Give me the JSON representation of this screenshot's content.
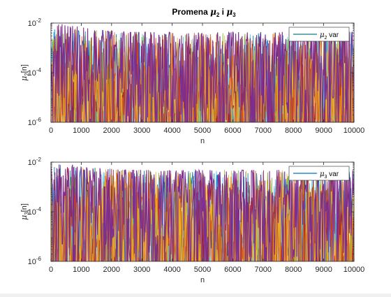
{
  "figure": {
    "title_main": "Promena ",
    "title_mu": "μ",
    "title_sub1": "2",
    "title_and": " i ",
    "title_mu2": "μ",
    "title_sub2": "3"
  },
  "colors": [
    "#0072BD",
    "#D95319",
    "#EDB120",
    "#7E2F8E",
    "#77AC30",
    "#4DBEEE",
    "#A2142F"
  ],
  "chart_data": [
    {
      "type": "line",
      "subplot": "top",
      "ylabel_main": "μ",
      "ylabel_sub": "2",
      "ylabel_suffix": "[n]",
      "xlabel": "n",
      "xlim": [
        0,
        10000
      ],
      "ylim": [
        1e-06,
        0.01
      ],
      "yscale": "log",
      "xticks": [
        0,
        1000,
        2000,
        3000,
        4000,
        5000,
        6000,
        7000,
        8000,
        9000,
        10000
      ],
      "ytick_labels": [
        {
          "base": "10",
          "exp": "-2"
        },
        {
          "base": "10",
          "exp": "-4"
        },
        {
          "base": "10",
          "exp": "-6"
        }
      ],
      "ytick_values": [
        0.01,
        0.0001,
        1e-06
      ],
      "envelope": {
        "start": 0.009,
        "mid": 0.004,
        "end": 0.0045
      },
      "legend": {
        "label_main": "μ",
        "label_sub": "2",
        "label_suffix": " var",
        "placement": "top-right"
      }
    },
    {
      "type": "line",
      "subplot": "bottom",
      "ylabel_main": "μ",
      "ylabel_sub": "3",
      "ylabel_suffix": "[n]",
      "xlabel": "n",
      "xlim": [
        0,
        10000
      ],
      "ylim": [
        1e-06,
        0.01
      ],
      "yscale": "log",
      "xticks": [
        0,
        1000,
        2000,
        3000,
        4000,
        5000,
        6000,
        7000,
        8000,
        9000,
        10000
      ],
      "ytick_labels": [
        {
          "base": "10",
          "exp": "-2"
        },
        {
          "base": "10",
          "exp": "-4"
        },
        {
          "base": "10",
          "exp": "-6"
        }
      ],
      "ytick_values": [
        0.01,
        0.0001,
        1e-06
      ],
      "envelope": {
        "start": 0.0085,
        "mid": 0.0045,
        "end": 0.005
      },
      "legend": {
        "label_main": "μ",
        "label_sub": "3",
        "label_suffix": " var",
        "placement": "top-right"
      }
    }
  ]
}
